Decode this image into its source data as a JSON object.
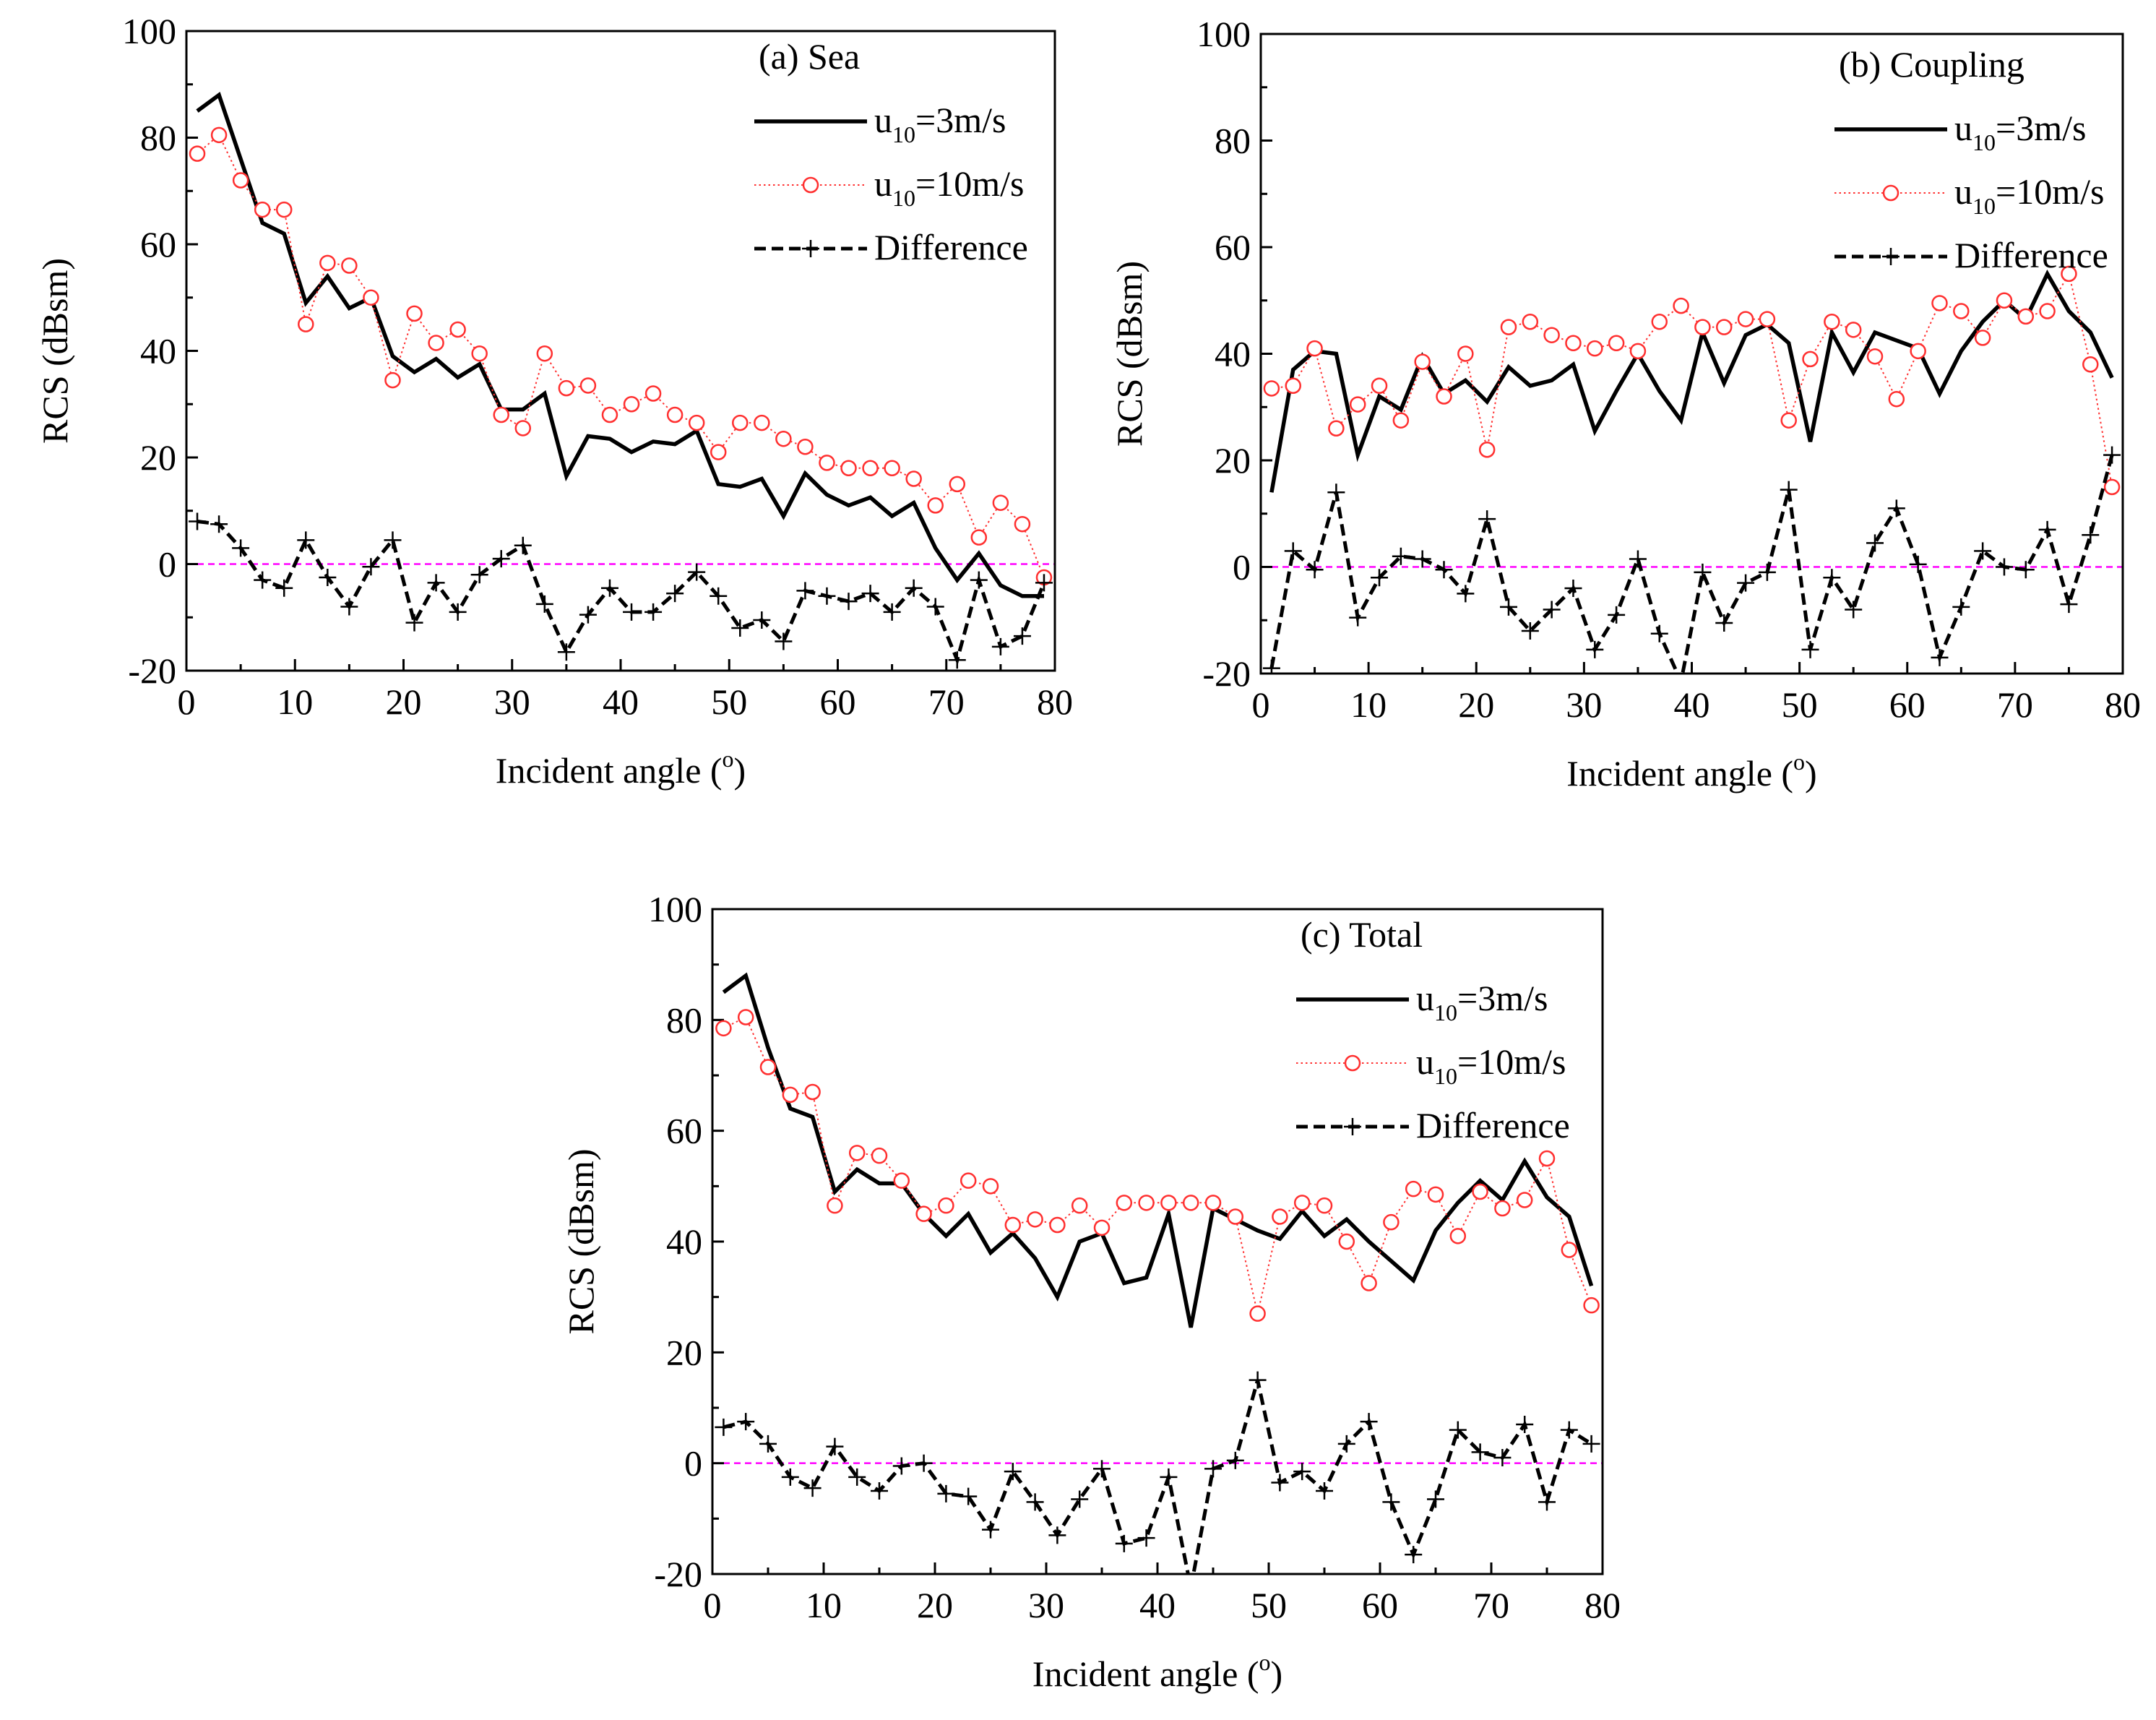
{
  "colors": {
    "series1": "#000000",
    "series2": "#ff3030",
    "difference": "#000000",
    "zero_line": "#ff00ff"
  },
  "chart_data": [
    {
      "type": "line",
      "legend_title": "(a) Sea",
      "xlabel": "Incident angle (",
      "xlabel_sup": "o",
      "xlabel_tail": ")",
      "ylabel": "RCS (dBsm)",
      "xlim": [
        0,
        80
      ],
      "ylim": [
        -20,
        100
      ],
      "xticks": [
        0,
        10,
        20,
        30,
        40,
        50,
        60,
        70,
        80
      ],
      "yticks": [
        -20,
        0,
        20,
        40,
        60,
        80,
        100
      ],
      "grid": false,
      "legend_position": "top-right",
      "x": [
        1,
        3,
        5,
        7,
        9,
        11,
        13,
        15,
        17,
        19,
        21,
        23,
        25,
        27,
        29,
        31,
        33,
        35,
        37,
        39,
        41,
        43,
        45,
        47,
        49,
        51,
        53,
        55,
        57,
        59,
        61,
        63,
        65,
        67,
        69,
        71,
        73,
        75,
        77,
        79
      ],
      "series": [
        {
          "name_main": "u",
          "name_sub": "10",
          "name_tail": "=3m/s",
          "style": "solid",
          "values": [
            85,
            88,
            76,
            64,
            62,
            49,
            54,
            48,
            50,
            39,
            36,
            38.5,
            35,
            37.5,
            29,
            29,
            32,
            16.5,
            24,
            23.5,
            21,
            23,
            22.5,
            25,
            15,
            14.5,
            16,
            9,
            17,
            13,
            11,
            12.5,
            9,
            11.5,
            3,
            -3,
            2,
            -4,
            -6,
            -6
          ]
        },
        {
          "name_main": "u",
          "name_sub": "10",
          "name_tail": "=10m/s",
          "style": "dotted-circle",
          "values": [
            77,
            80.5,
            72,
            66.5,
            66.5,
            45,
            56.5,
            56,
            50,
            34.5,
            47,
            41.5,
            44,
            39.5,
            28,
            25.5,
            39.5,
            33,
            33.5,
            28,
            30,
            32,
            28,
            26.5,
            21,
            26.5,
            26.5,
            23.5,
            22,
            19,
            18,
            18,
            18,
            16,
            11,
            15,
            5,
            11.5,
            7.5,
            -2.5
          ]
        },
        {
          "name": "Difference",
          "style": "dashed-plus",
          "values": [
            8,
            7.5,
            3,
            -3,
            -4.5,
            4.5,
            -2.5,
            -8,
            -0.5,
            4.5,
            -11,
            -3.5,
            -9,
            -2,
            1,
            3.5,
            -7.5,
            -16.5,
            -9.5,
            -4.5,
            -9,
            -9,
            -5.5,
            -1.5,
            -6,
            -12,
            -10.5,
            -14.5,
            -5,
            -6,
            -7,
            -5.5,
            -9,
            -4.5,
            -8,
            -18,
            -3,
            -15.5,
            -13.5,
            -3.5
          ]
        }
      ]
    },
    {
      "type": "line",
      "legend_title": "(b) Coupling",
      "xlabel": "Incident angle (",
      "xlabel_sup": "o",
      "xlabel_tail": ")",
      "ylabel": "RCS (dBsm)",
      "xlim": [
        0,
        80
      ],
      "ylim": [
        -20,
        100
      ],
      "xticks": [
        0,
        10,
        20,
        30,
        40,
        50,
        60,
        70,
        80
      ],
      "yticks": [
        -20,
        0,
        20,
        40,
        60,
        80,
        100
      ],
      "grid": false,
      "legend_position": "top-right",
      "x": [
        1,
        3,
        5,
        7,
        9,
        11,
        13,
        15,
        17,
        19,
        21,
        23,
        25,
        27,
        29,
        31,
        33,
        35,
        37,
        39,
        41,
        43,
        45,
        47,
        49,
        51,
        53,
        55,
        57,
        59,
        61,
        63,
        65,
        67,
        69,
        71,
        73,
        75,
        77,
        79
      ],
      "series": [
        {
          "name_main": "u",
          "name_sub": "10",
          "name_tail": "=3m/s",
          "style": "solid",
          "values": [
            14,
            37,
            40.5,
            40,
            21,
            32,
            29.5,
            39.5,
            32.5,
            35,
            31,
            37.5,
            34,
            35,
            38,
            25.5,
            33,
            40,
            33,
            27.5,
            44,
            34.5,
            43.5,
            45.5,
            42,
            23.5,
            44,
            36.5,
            44,
            42.5,
            41,
            32.5,
            40.5,
            46,
            50,
            46.5,
            55,
            48,
            44,
            35.5
          ]
        },
        {
          "name_main": "u",
          "name_sub": "10",
          "name_tail": "=10m/s",
          "style": "dotted-circle",
          "values": [
            33.5,
            34,
            41,
            26,
            30.5,
            34,
            27.5,
            38.5,
            32,
            40,
            22,
            45,
            46,
            43.5,
            42,
            41,
            42,
            40.5,
            46,
            49,
            45,
            45,
            46.5,
            46.5,
            27.5,
            39,
            46,
            44.5,
            39.5,
            31.5,
            40.5,
            49.5,
            48,
            43,
            50,
            47,
            48,
            55,
            38,
            15
          ]
        },
        {
          "name": "Difference",
          "style": "dashed-plus",
          "values": [
            -19,
            3,
            -0.5,
            14,
            -9.5,
            -2,
            2,
            1.5,
            -0.5,
            -5,
            9,
            -7.5,
            -12,
            -8,
            -4,
            -15.5,
            -9,
            1.5,
            -12.5,
            -21.5,
            -1,
            -10.5,
            -3,
            -1,
            14.5,
            -15.5,
            -2,
            -8,
            4.5,
            11,
            0.5,
            -17,
            -7.5,
            3,
            0,
            -0.5,
            7,
            -7,
            6,
            21
          ]
        }
      ]
    },
    {
      "type": "line",
      "legend_title": "(c) Total",
      "xlabel": "Incident angle (",
      "xlabel_sup": "o",
      "xlabel_tail": ")",
      "ylabel": "RCS (dBsm)",
      "xlim": [
        0,
        80
      ],
      "ylim": [
        -20,
        100
      ],
      "xticks": [
        0,
        10,
        20,
        30,
        40,
        50,
        60,
        70,
        80
      ],
      "yticks": [
        -20,
        0,
        20,
        40,
        60,
        80,
        100
      ],
      "grid": false,
      "legend_position": "top-right",
      "x": [
        1,
        3,
        5,
        7,
        9,
        11,
        13,
        15,
        17,
        19,
        21,
        23,
        25,
        27,
        29,
        31,
        33,
        35,
        37,
        39,
        41,
        43,
        45,
        47,
        49,
        51,
        53,
        55,
        57,
        59,
        61,
        63,
        65,
        67,
        69,
        71,
        73,
        75,
        77,
        79
      ],
      "series": [
        {
          "name_main": "u",
          "name_sub": "10",
          "name_tail": "=3m/s",
          "style": "solid",
          "values": [
            85,
            88,
            75,
            64,
            62.5,
            49,
            53,
            50.5,
            50.5,
            45,
            41,
            45,
            38,
            41.5,
            37,
            30,
            40,
            41.5,
            32.5,
            33.5,
            45,
            24.5,
            46,
            44,
            42,
            40.5,
            45.5,
            41,
            44,
            40,
            36.5,
            33,
            42,
            47,
            51,
            47.5,
            54.5,
            48,
            44.5,
            32
          ]
        },
        {
          "name_main": "u",
          "name_sub": "10",
          "name_tail": "=10m/s",
          "style": "dotted-circle",
          "values": [
            78.5,
            80.5,
            71.5,
            66.5,
            67,
            46.5,
            56,
            55.5,
            51,
            45,
            46.5,
            51,
            50,
            43,
            44,
            43,
            46.5,
            42.5,
            47,
            47,
            47,
            47,
            47,
            44.5,
            27,
            44.5,
            47,
            46.5,
            40,
            32.5,
            43.5,
            49.5,
            48.5,
            41,
            49,
            46,
            47.5,
            55,
            38.5,
            28.5
          ]
        },
        {
          "name": "Difference",
          "style": "dashed-plus",
          "values": [
            6.5,
            7.5,
            3.5,
            -2.5,
            -4.5,
            3,
            -2.5,
            -5,
            -0.5,
            0,
            -5.5,
            -6,
            -12,
            -1.5,
            -7,
            -13,
            -6.5,
            -1,
            -14.5,
            -13.5,
            -2.5,
            -22.5,
            -1,
            0.5,
            15,
            -3.5,
            -1.5,
            -5,
            3.5,
            7.5,
            -7,
            -16.5,
            -6.5,
            6,
            2,
            1,
            7,
            -7,
            6,
            3.5
          ]
        }
      ]
    }
  ]
}
